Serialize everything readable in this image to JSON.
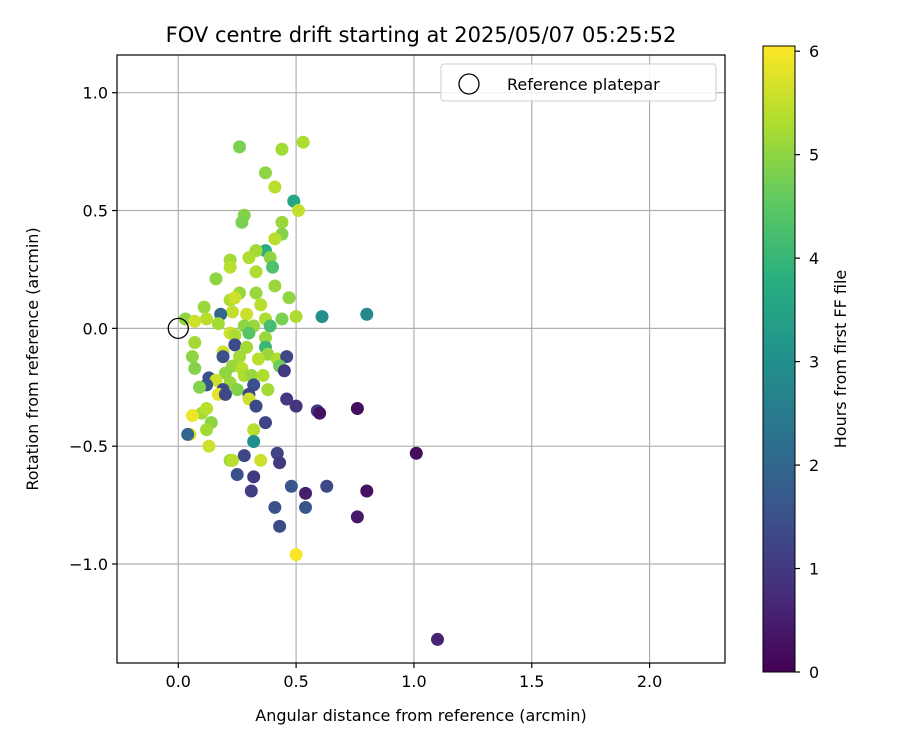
{
  "chart_data": {
    "type": "scatter",
    "title": "FOV centre drift starting at 2025/05/07 05:25:52",
    "xlabel": "Angular distance from reference (arcmin)",
    "ylabel": "Rotation from reference (arcmin)",
    "xlim": [
      -0.26,
      2.32
    ],
    "ylim": [
      -1.42,
      1.16
    ],
    "xticks": [
      0.0,
      0.5,
      1.0,
      1.5,
      2.0
    ],
    "xtick_labels": [
      "0.0",
      "0.5",
      "1.0",
      "1.5",
      "2.0"
    ],
    "yticks": [
      1.0,
      0.5,
      0.0,
      -0.5,
      -1.0
    ],
    "ytick_labels": [
      "1.0",
      "0.5",
      "0.0",
      "−0.5",
      "−1.0"
    ],
    "grid": true,
    "colorbar": {
      "label": "Hours from first FF file",
      "range": [
        0,
        6.05
      ],
      "ticks": [
        0,
        1,
        2,
        3,
        4,
        5,
        6
      ],
      "tick_labels": [
        "0",
        "1",
        "2",
        "3",
        "4",
        "5",
        "6"
      ],
      "colormap": "viridis"
    },
    "legend": {
      "position": "top-right",
      "entries": [
        "Reference platepar"
      ]
    },
    "reference_point": {
      "x": 0.0,
      "y": 0.0
    },
    "points": [
      {
        "x": 0.26,
        "y": 0.77,
        "c": 4.8
      },
      {
        "x": 0.53,
        "y": 0.79,
        "c": 5.3
      },
      {
        "x": 0.44,
        "y": 0.76,
        "c": 5.2
      },
      {
        "x": 0.37,
        "y": 0.66,
        "c": 5.0
      },
      {
        "x": 0.41,
        "y": 0.6,
        "c": 5.4
      },
      {
        "x": 0.49,
        "y": 0.54,
        "c": 3.6
      },
      {
        "x": 0.51,
        "y": 0.5,
        "c": 5.5
      },
      {
        "x": 0.28,
        "y": 0.48,
        "c": 4.9
      },
      {
        "x": 0.27,
        "y": 0.45,
        "c": 4.8
      },
      {
        "x": 0.44,
        "y": 0.45,
        "c": 5.1
      },
      {
        "x": 0.44,
        "y": 0.4,
        "c": 4.9
      },
      {
        "x": 0.41,
        "y": 0.38,
        "c": 5.4
      },
      {
        "x": 0.37,
        "y": 0.33,
        "c": 3.8
      },
      {
        "x": 0.33,
        "y": 0.33,
        "c": 5.2
      },
      {
        "x": 0.39,
        "y": 0.3,
        "c": 5.0
      },
      {
        "x": 0.3,
        "y": 0.3,
        "c": 5.3
      },
      {
        "x": 0.22,
        "y": 0.29,
        "c": 5.2
      },
      {
        "x": 0.22,
        "y": 0.26,
        "c": 5.4
      },
      {
        "x": 0.4,
        "y": 0.26,
        "c": 4.3
      },
      {
        "x": 0.33,
        "y": 0.24,
        "c": 5.3
      },
      {
        "x": 0.16,
        "y": 0.21,
        "c": 5.0
      },
      {
        "x": 0.41,
        "y": 0.18,
        "c": 5.1
      },
      {
        "x": 0.26,
        "y": 0.15,
        "c": 5.1
      },
      {
        "x": 0.33,
        "y": 0.15,
        "c": 5.1
      },
      {
        "x": 0.22,
        "y": 0.12,
        "c": 5.3
      },
      {
        "x": 0.24,
        "y": 0.13,
        "c": 5.6
      },
      {
        "x": 0.47,
        "y": 0.13,
        "c": 5.0
      },
      {
        "x": 0.35,
        "y": 0.1,
        "c": 5.4
      },
      {
        "x": 0.11,
        "y": 0.09,
        "c": 5.1
      },
      {
        "x": 0.23,
        "y": 0.07,
        "c": 5.5
      },
      {
        "x": 0.29,
        "y": 0.06,
        "c": 5.6
      },
      {
        "x": 0.18,
        "y": 0.06,
        "c": 2.0
      },
      {
        "x": 0.03,
        "y": 0.04,
        "c": 5.0
      },
      {
        "x": 0.12,
        "y": 0.04,
        "c": 5.4
      },
      {
        "x": 0.07,
        "y": 0.03,
        "c": 5.6
      },
      {
        "x": 0.17,
        "y": 0.02,
        "c": 5.2
      },
      {
        "x": 0.32,
        "y": 0.01,
        "c": 5.1
      },
      {
        "x": 0.37,
        "y": 0.04,
        "c": 5.3
      },
      {
        "x": 0.44,
        "y": 0.04,
        "c": 4.8
      },
      {
        "x": 0.5,
        "y": 0.05,
        "c": 5.3
      },
      {
        "x": 0.61,
        "y": 0.05,
        "c": 3.0
      },
      {
        "x": 0.8,
        "y": 0.06,
        "c": 2.8
      },
      {
        "x": 0.28,
        "y": 0.01,
        "c": 5.0
      },
      {
        "x": 0.39,
        "y": 0.01,
        "c": 4.2
      },
      {
        "x": 0.22,
        "y": -0.02,
        "c": 5.6
      },
      {
        "x": 0.24,
        "y": -0.03,
        "c": 5.3
      },
      {
        "x": 0.3,
        "y": -0.02,
        "c": 4.4
      },
      {
        "x": 0.37,
        "y": -0.04,
        "c": 5.1
      },
      {
        "x": 0.07,
        "y": -0.06,
        "c": 5.2
      },
      {
        "x": 0.24,
        "y": -0.07,
        "c": 1.4
      },
      {
        "x": 0.29,
        "y": -0.08,
        "c": 5.2
      },
      {
        "x": 0.37,
        "y": -0.08,
        "c": 4.0
      },
      {
        "x": 0.19,
        "y": -0.1,
        "c": 5.6
      },
      {
        "x": 0.38,
        "y": -0.11,
        "c": 5.1
      },
      {
        "x": 0.06,
        "y": -0.12,
        "c": 5.0
      },
      {
        "x": 0.19,
        "y": -0.12,
        "c": 1.5
      },
      {
        "x": 0.26,
        "y": -0.12,
        "c": 5.2
      },
      {
        "x": 0.34,
        "y": -0.13,
        "c": 5.4
      },
      {
        "x": 0.42,
        "y": -0.13,
        "c": 5.3
      },
      {
        "x": 0.46,
        "y": -0.12,
        "c": 1.3
      },
      {
        "x": 0.23,
        "y": -0.16,
        "c": 5.1
      },
      {
        "x": 0.07,
        "y": -0.17,
        "c": 4.9
      },
      {
        "x": 0.27,
        "y": -0.17,
        "c": 5.4
      },
      {
        "x": 0.43,
        "y": -0.16,
        "c": 4.7
      },
      {
        "x": 0.45,
        "y": -0.18,
        "c": 1.0
      },
      {
        "x": 0.2,
        "y": -0.19,
        "c": 5.0
      },
      {
        "x": 0.28,
        "y": -0.2,
        "c": 5.3
      },
      {
        "x": 0.31,
        "y": -0.2,
        "c": 5.1
      },
      {
        "x": 0.13,
        "y": -0.21,
        "c": 1.5
      },
      {
        "x": 0.36,
        "y": -0.2,
        "c": 5.3
      },
      {
        "x": 0.16,
        "y": -0.22,
        "c": 5.6
      },
      {
        "x": 0.22,
        "y": -0.23,
        "c": 5.1
      },
      {
        "x": 0.12,
        "y": -0.24,
        "c": 1.6
      },
      {
        "x": 0.09,
        "y": -0.25,
        "c": 4.9
      },
      {
        "x": 0.32,
        "y": -0.24,
        "c": 1.5
      },
      {
        "x": 0.19,
        "y": -0.26,
        "c": 1.4
      },
      {
        "x": 0.25,
        "y": -0.26,
        "c": 4.9
      },
      {
        "x": 0.38,
        "y": -0.26,
        "c": 5.2
      },
      {
        "x": 0.17,
        "y": -0.28,
        "c": 5.8
      },
      {
        "x": 0.3,
        "y": -0.28,
        "c": 1.2
      },
      {
        "x": 0.2,
        "y": -0.28,
        "c": 1.3
      },
      {
        "x": 0.46,
        "y": -0.3,
        "c": 1.0
      },
      {
        "x": 0.3,
        "y": -0.3,
        "c": 5.6
      },
      {
        "x": 0.5,
        "y": -0.33,
        "c": 0.9
      },
      {
        "x": 0.33,
        "y": -0.33,
        "c": 1.3
      },
      {
        "x": 0.1,
        "y": -0.36,
        "c": 5.2
      },
      {
        "x": 0.12,
        "y": -0.34,
        "c": 5.4
      },
      {
        "x": 0.06,
        "y": -0.37,
        "c": 5.9
      },
      {
        "x": 0.59,
        "y": -0.35,
        "c": 1.0
      },
      {
        "x": 0.6,
        "y": -0.36,
        "c": 0.3
      },
      {
        "x": 0.76,
        "y": -0.34,
        "c": 0.2
      },
      {
        "x": 0.14,
        "y": -0.4,
        "c": 5.0
      },
      {
        "x": 0.37,
        "y": -0.4,
        "c": 1.2
      },
      {
        "x": 0.12,
        "y": -0.43,
        "c": 5.2
      },
      {
        "x": 0.32,
        "y": -0.43,
        "c": 5.4
      },
      {
        "x": 0.05,
        "y": -0.45,
        "c": 5.8
      },
      {
        "x": 0.04,
        "y": -0.45,
        "c": 2.0
      },
      {
        "x": 0.32,
        "y": -0.48,
        "c": 3.0
      },
      {
        "x": 0.13,
        "y": -0.5,
        "c": 5.6
      },
      {
        "x": 0.42,
        "y": -0.53,
        "c": 1.2
      },
      {
        "x": 1.01,
        "y": -0.53,
        "c": 0.2
      },
      {
        "x": 0.28,
        "y": -0.54,
        "c": 1.3
      },
      {
        "x": 0.22,
        "y": -0.56,
        "c": 5.1
      },
      {
        "x": 0.23,
        "y": -0.56,
        "c": 5.4
      },
      {
        "x": 0.35,
        "y": -0.56,
        "c": 5.6
      },
      {
        "x": 0.43,
        "y": -0.57,
        "c": 1.0
      },
      {
        "x": 0.25,
        "y": -0.62,
        "c": 1.5
      },
      {
        "x": 0.32,
        "y": -0.63,
        "c": 1.0
      },
      {
        "x": 0.48,
        "y": -0.67,
        "c": 1.6
      },
      {
        "x": 0.63,
        "y": -0.67,
        "c": 1.3
      },
      {
        "x": 0.31,
        "y": -0.69,
        "c": 1.1
      },
      {
        "x": 0.54,
        "y": -0.7,
        "c": 0.5
      },
      {
        "x": 0.8,
        "y": -0.69,
        "c": 0.3
      },
      {
        "x": 0.41,
        "y": -0.76,
        "c": 1.5
      },
      {
        "x": 0.54,
        "y": -0.76,
        "c": 1.6
      },
      {
        "x": 0.76,
        "y": -0.8,
        "c": 0.4
      },
      {
        "x": 0.43,
        "y": -0.84,
        "c": 1.4
      },
      {
        "x": 0.5,
        "y": -0.96,
        "c": 6.0
      },
      {
        "x": 1.1,
        "y": -1.32,
        "c": 0.6
      }
    ]
  }
}
